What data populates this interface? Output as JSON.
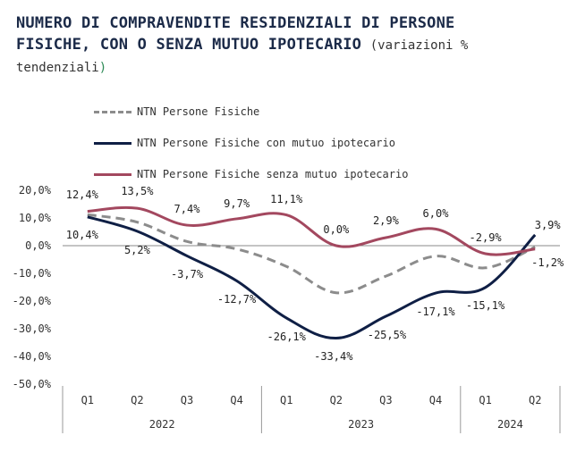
{
  "title": {
    "main_line1": "NUMERO DI COMPRAVENDITE RESIDENZIALI DI PERSONE",
    "main_line2": "FISICHE, CON O SENZA MUTUO IPOTECARIO",
    "sub_open": "(variazioni %",
    "sub_rest": "tendenziali",
    "sub_close": ")"
  },
  "chart_data": {
    "type": "line",
    "categories": [
      "Q1",
      "Q2",
      "Q3",
      "Q4",
      "Q1",
      "Q2",
      "Q3",
      "Q4",
      "Q1",
      "Q2"
    ],
    "year_groups": [
      {
        "label": "2022",
        "span": 4
      },
      {
        "label": "2023",
        "span": 4
      },
      {
        "label": "2024",
        "span": 2
      }
    ],
    "ylim": [
      -50,
      20
    ],
    "yticks": [
      20,
      10,
      0,
      -10,
      -20,
      -30,
      -40,
      -50
    ],
    "ytick_labels": [
      "20,0%",
      "10,0%",
      "0,0%",
      "-10,0%",
      "-20,0%",
      "-30,0%",
      "-40,0%",
      "-50,0%"
    ],
    "legend_position": "top-left",
    "series": [
      {
        "name": "NTN Persone Fisiche",
        "color": "#8c8c8c",
        "style": "dashed",
        "values": [
          11.2,
          8.5,
          1.5,
          -1.2,
          -7.5,
          -17.0,
          -11.0,
          -3.8,
          -8.0,
          -0.5
        ]
      },
      {
        "name": "NTN Persone Fisiche con mutuo ipotecario",
        "color": "#0f1f45",
        "style": "solid",
        "values": [
          10.4,
          5.2,
          -3.7,
          -12.7,
          -26.1,
          -33.4,
          -25.5,
          -17.1,
          -15.1,
          3.9
        ],
        "labels": [
          "10,4%",
          "5,2%",
          "-3,7%",
          "-12,7%",
          "-26,1%",
          "-33,4%",
          "-25,5%",
          "-17,1%",
          "-15,1%",
          "3,9%"
        ]
      },
      {
        "name": "NTN Persone Fisiche senza mutuo ipotecario",
        "color": "#a3485f",
        "style": "solid",
        "values": [
          12.4,
          13.5,
          7.4,
          9.7,
          11.1,
          0.0,
          2.9,
          6.0,
          -2.9,
          -1.2
        ],
        "labels": [
          "12,4%",
          "13,5%",
          "7,4%",
          "9,7%",
          "11,1%",
          "0,0%",
          "2,9%",
          "6,0%",
          "-2,9%",
          "-1,2%"
        ]
      }
    ]
  }
}
